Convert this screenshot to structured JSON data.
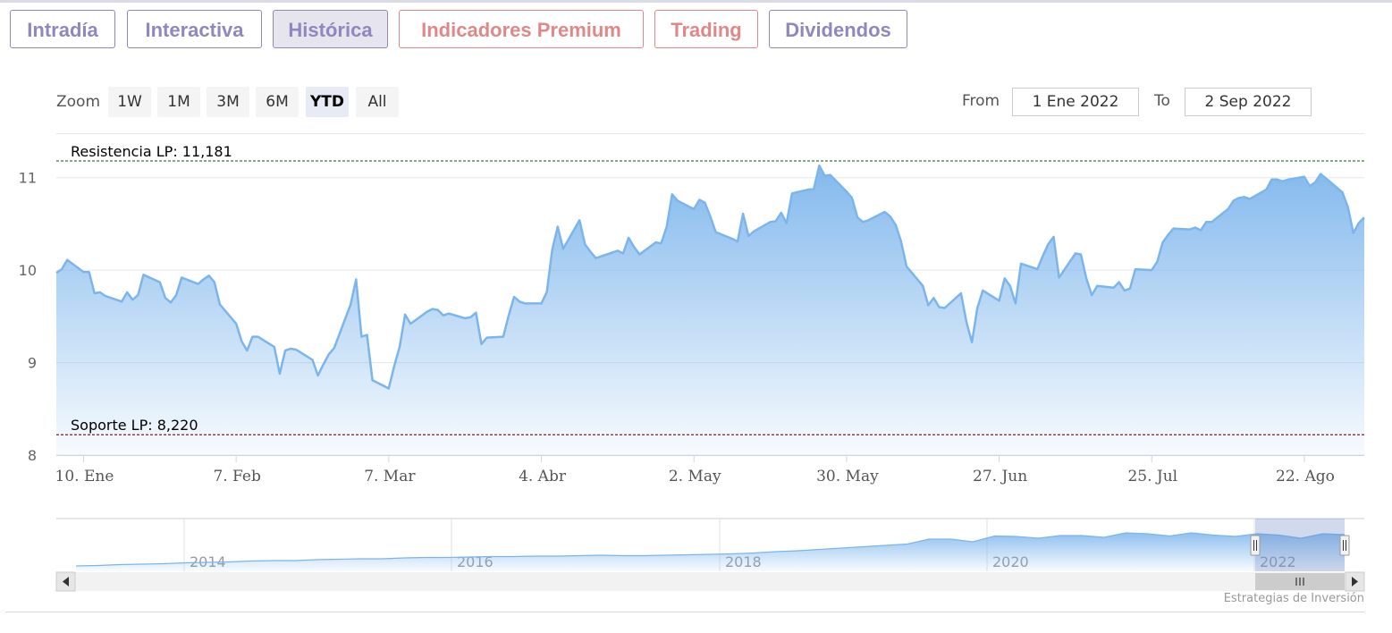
{
  "tabs": [
    {
      "label": "Intradía",
      "color": "purple",
      "active": false
    },
    {
      "label": "Interactiva",
      "color": "purple",
      "active": false
    },
    {
      "label": "Histórica",
      "color": "purple",
      "active": true
    },
    {
      "label": "Indicadores Premium",
      "color": "red",
      "active": false
    },
    {
      "label": "Trading",
      "color": "red",
      "active": false
    },
    {
      "label": "Dividendos",
      "color": "purple",
      "active": false
    }
  ],
  "range_selector": {
    "zoom_label": "Zoom",
    "buttons": [
      "1W",
      "1M",
      "3M",
      "6M",
      "YTD",
      "All"
    ],
    "selected": "YTD",
    "from_label": "From",
    "from_value": "1 Ene 2022",
    "to_label": "To",
    "to_value": "2 Sep 2022"
  },
  "colors": {
    "line": "#7cb5ec",
    "resistance": "#2e7d32",
    "support": "#8b1a1a",
    "tab_purple": "#8f87bd",
    "tab_red": "#e08888"
  },
  "credit": "Estrategias de Inversión",
  "chart_data": {
    "type": "area",
    "title": "",
    "xlabel": "",
    "ylabel": "",
    "ylim": [
      8,
      11.2
    ],
    "yticks": [
      8,
      9,
      10,
      11
    ],
    "x_range": [
      "2022-01-05",
      "2022-09-02"
    ],
    "grid": true,
    "x_ticks": [
      {
        "label": "10. Ene",
        "date": "2022-01-10"
      },
      {
        "label": "7. Feb",
        "date": "2022-02-07"
      },
      {
        "label": "7. Mar",
        "date": "2022-03-07"
      },
      {
        "label": "4. Abr",
        "date": "2022-04-04"
      },
      {
        "label": "2. May",
        "date": "2022-05-02"
      },
      {
        "label": "30. May",
        "date": "2022-05-30"
      },
      {
        "label": "27. Jun",
        "date": "2022-06-27"
      },
      {
        "label": "25. Jul",
        "date": "2022-07-25"
      },
      {
        "label": "22. Ago",
        "date": "2022-08-22"
      }
    ],
    "plot_lines": [
      {
        "label": "Resistencia LP: 11,181",
        "value": 11.181,
        "style": "dashed",
        "color": "resistance"
      },
      {
        "label": "Soporte LP: 8,220",
        "value": 8.22,
        "style": "dashed",
        "color": "support"
      }
    ],
    "series": [
      {
        "dates": [
          "2022-01-05",
          "2022-01-06",
          "2022-01-07",
          "2022-01-10",
          "2022-01-11",
          "2022-01-12",
          "2022-01-13",
          "2022-01-14",
          "2022-01-17",
          "2022-01-18",
          "2022-01-19",
          "2022-01-20",
          "2022-01-21",
          "2022-01-24",
          "2022-01-25",
          "2022-01-26",
          "2022-01-27",
          "2022-01-28",
          "2022-01-31",
          "2022-02-01",
          "2022-02-02",
          "2022-02-03",
          "2022-02-04",
          "2022-02-07",
          "2022-02-08",
          "2022-02-09",
          "2022-02-10",
          "2022-02-11",
          "2022-02-14",
          "2022-02-15",
          "2022-02-16",
          "2022-02-17",
          "2022-02-18",
          "2022-02-21",
          "2022-02-22",
          "2022-02-23",
          "2022-02-24",
          "2022-02-25",
          "2022-02-28",
          "2022-03-01",
          "2022-03-02",
          "2022-03-03",
          "2022-03-04",
          "2022-03-07",
          "2022-03-08",
          "2022-03-09",
          "2022-03-10",
          "2022-03-11",
          "2022-03-14",
          "2022-03-15",
          "2022-03-16",
          "2022-03-17",
          "2022-03-18",
          "2022-03-21",
          "2022-03-22",
          "2022-03-23",
          "2022-03-24",
          "2022-03-25",
          "2022-03-28",
          "2022-03-29",
          "2022-03-30",
          "2022-03-31",
          "2022-04-01",
          "2022-04-04",
          "2022-04-05",
          "2022-04-06",
          "2022-04-07",
          "2022-04-08",
          "2022-04-11",
          "2022-04-12",
          "2022-04-13",
          "2022-04-14",
          "2022-04-18",
          "2022-04-19",
          "2022-04-20",
          "2022-04-21",
          "2022-04-22",
          "2022-04-25",
          "2022-04-26",
          "2022-04-27",
          "2022-04-28",
          "2022-04-29",
          "2022-05-02",
          "2022-05-03",
          "2022-05-04",
          "2022-05-05",
          "2022-05-06",
          "2022-05-09",
          "2022-05-10",
          "2022-05-11",
          "2022-05-12",
          "2022-05-13",
          "2022-05-16",
          "2022-05-17",
          "2022-05-18",
          "2022-05-19",
          "2022-05-20",
          "2022-05-23",
          "2022-05-24",
          "2022-05-25",
          "2022-05-26",
          "2022-05-27",
          "2022-05-30",
          "2022-05-31",
          "2022-06-01",
          "2022-06-02",
          "2022-06-03",
          "2022-06-06",
          "2022-06-07",
          "2022-06-08",
          "2022-06-09",
          "2022-06-10",
          "2022-06-13",
          "2022-06-14",
          "2022-06-15",
          "2022-06-16",
          "2022-06-17",
          "2022-06-20",
          "2022-06-21",
          "2022-06-22",
          "2022-06-23",
          "2022-06-24",
          "2022-06-27",
          "2022-06-28",
          "2022-06-29",
          "2022-06-30",
          "2022-07-01",
          "2022-07-04",
          "2022-07-05",
          "2022-07-06",
          "2022-07-07",
          "2022-07-08",
          "2022-07-11",
          "2022-07-12",
          "2022-07-13",
          "2022-07-14",
          "2022-07-15",
          "2022-07-18",
          "2022-07-19",
          "2022-07-20",
          "2022-07-21",
          "2022-07-22",
          "2022-07-25",
          "2022-07-26",
          "2022-07-27",
          "2022-07-28",
          "2022-07-29",
          "2022-08-01",
          "2022-08-02",
          "2022-08-03",
          "2022-08-04",
          "2022-08-05",
          "2022-08-08",
          "2022-08-09",
          "2022-08-10",
          "2022-08-11",
          "2022-08-12",
          "2022-08-15",
          "2022-08-16",
          "2022-08-17",
          "2022-08-18",
          "2022-08-19",
          "2022-08-22",
          "2022-08-23",
          "2022-08-24",
          "2022-08-25",
          "2022-08-26",
          "2022-08-29",
          "2022-08-30",
          "2022-08-31",
          "2022-09-01",
          "2022-09-02"
        ],
        "values": [
          9.97,
          10.01,
          10.11,
          9.98,
          9.98,
          9.75,
          9.76,
          9.72,
          9.66,
          9.76,
          9.68,
          9.73,
          9.95,
          9.87,
          9.7,
          9.65,
          9.73,
          9.92,
          9.85,
          9.9,
          9.94,
          9.87,
          9.63,
          9.42,
          9.23,
          9.13,
          9.28,
          9.28,
          9.17,
          8.88,
          9.13,
          9.15,
          9.14,
          9.03,
          8.86,
          8.98,
          9.09,
          9.16,
          9.63,
          9.9,
          9.28,
          9.3,
          8.81,
          8.72,
          8.96,
          9.17,
          9.52,
          9.42,
          9.55,
          9.58,
          9.57,
          9.51,
          9.53,
          9.48,
          9.49,
          9.54,
          9.2,
          9.27,
          9.28,
          9.51,
          9.71,
          9.66,
          9.64,
          9.64,
          9.76,
          10.22,
          10.47,
          10.23,
          10.54,
          10.28,
          10.2,
          10.13,
          10.21,
          10.18,
          10.35,
          10.25,
          10.17,
          10.3,
          10.29,
          10.47,
          10.82,
          10.75,
          10.66,
          10.76,
          10.73,
          10.58,
          10.41,
          10.34,
          10.31,
          10.61,
          10.37,
          10.42,
          10.52,
          10.53,
          10.62,
          10.51,
          10.83,
          10.87,
          10.88,
          11.13,
          11.02,
          11.03,
          10.85,
          10.78,
          10.57,
          10.52,
          10.54,
          10.63,
          10.58,
          10.49,
          10.31,
          10.04,
          9.83,
          9.62,
          9.7,
          9.6,
          9.59,
          9.75,
          9.44,
          9.22,
          9.59,
          9.78,
          9.67,
          9.91,
          9.83,
          9.64,
          10.07,
          10.01,
          10.15,
          10.28,
          10.36,
          9.92,
          10.18,
          10.17,
          9.91,
          9.73,
          9.83,
          9.81,
          9.87,
          9.78,
          9.8,
          10.01,
          10.0,
          10.09,
          10.3,
          10.38,
          10.45,
          10.44,
          10.46,
          10.43,
          10.52,
          10.52,
          10.66,
          10.75,
          10.78,
          10.79,
          10.77,
          10.87,
          10.98,
          10.98,
          10.96,
          10.98,
          11.01,
          10.91,
          10.95,
          11.04,
          10.99,
          10.84,
          10.68,
          10.4,
          10.51,
          10.57
        ]
      }
    ],
    "navigator": {
      "x_labels": [
        "2014",
        "2016",
        "2018",
        "2020",
        "2022"
      ],
      "values": [
        0.04,
        0.05,
        0.07,
        0.08,
        0.09,
        0.11,
        0.12,
        0.13,
        0.15,
        0.16,
        0.16,
        0.18,
        0.19,
        0.2,
        0.2,
        0.22,
        0.23,
        0.23,
        0.24,
        0.25,
        0.25,
        0.26,
        0.26,
        0.27,
        0.28,
        0.27,
        0.27,
        0.28,
        0.29,
        0.3,
        0.31,
        0.33,
        0.36,
        0.38,
        0.41,
        0.44,
        0.47,
        0.5,
        0.53,
        0.6,
        0.64,
        0.62,
        0.67,
        0.7,
        0.7,
        0.68,
        0.72,
        0.72,
        0.74,
        0.76,
        0.75,
        0.74,
        0.73,
        0.74,
        0.72,
        0.73,
        0.7,
        0.72,
        0.74
      ]
    }
  }
}
